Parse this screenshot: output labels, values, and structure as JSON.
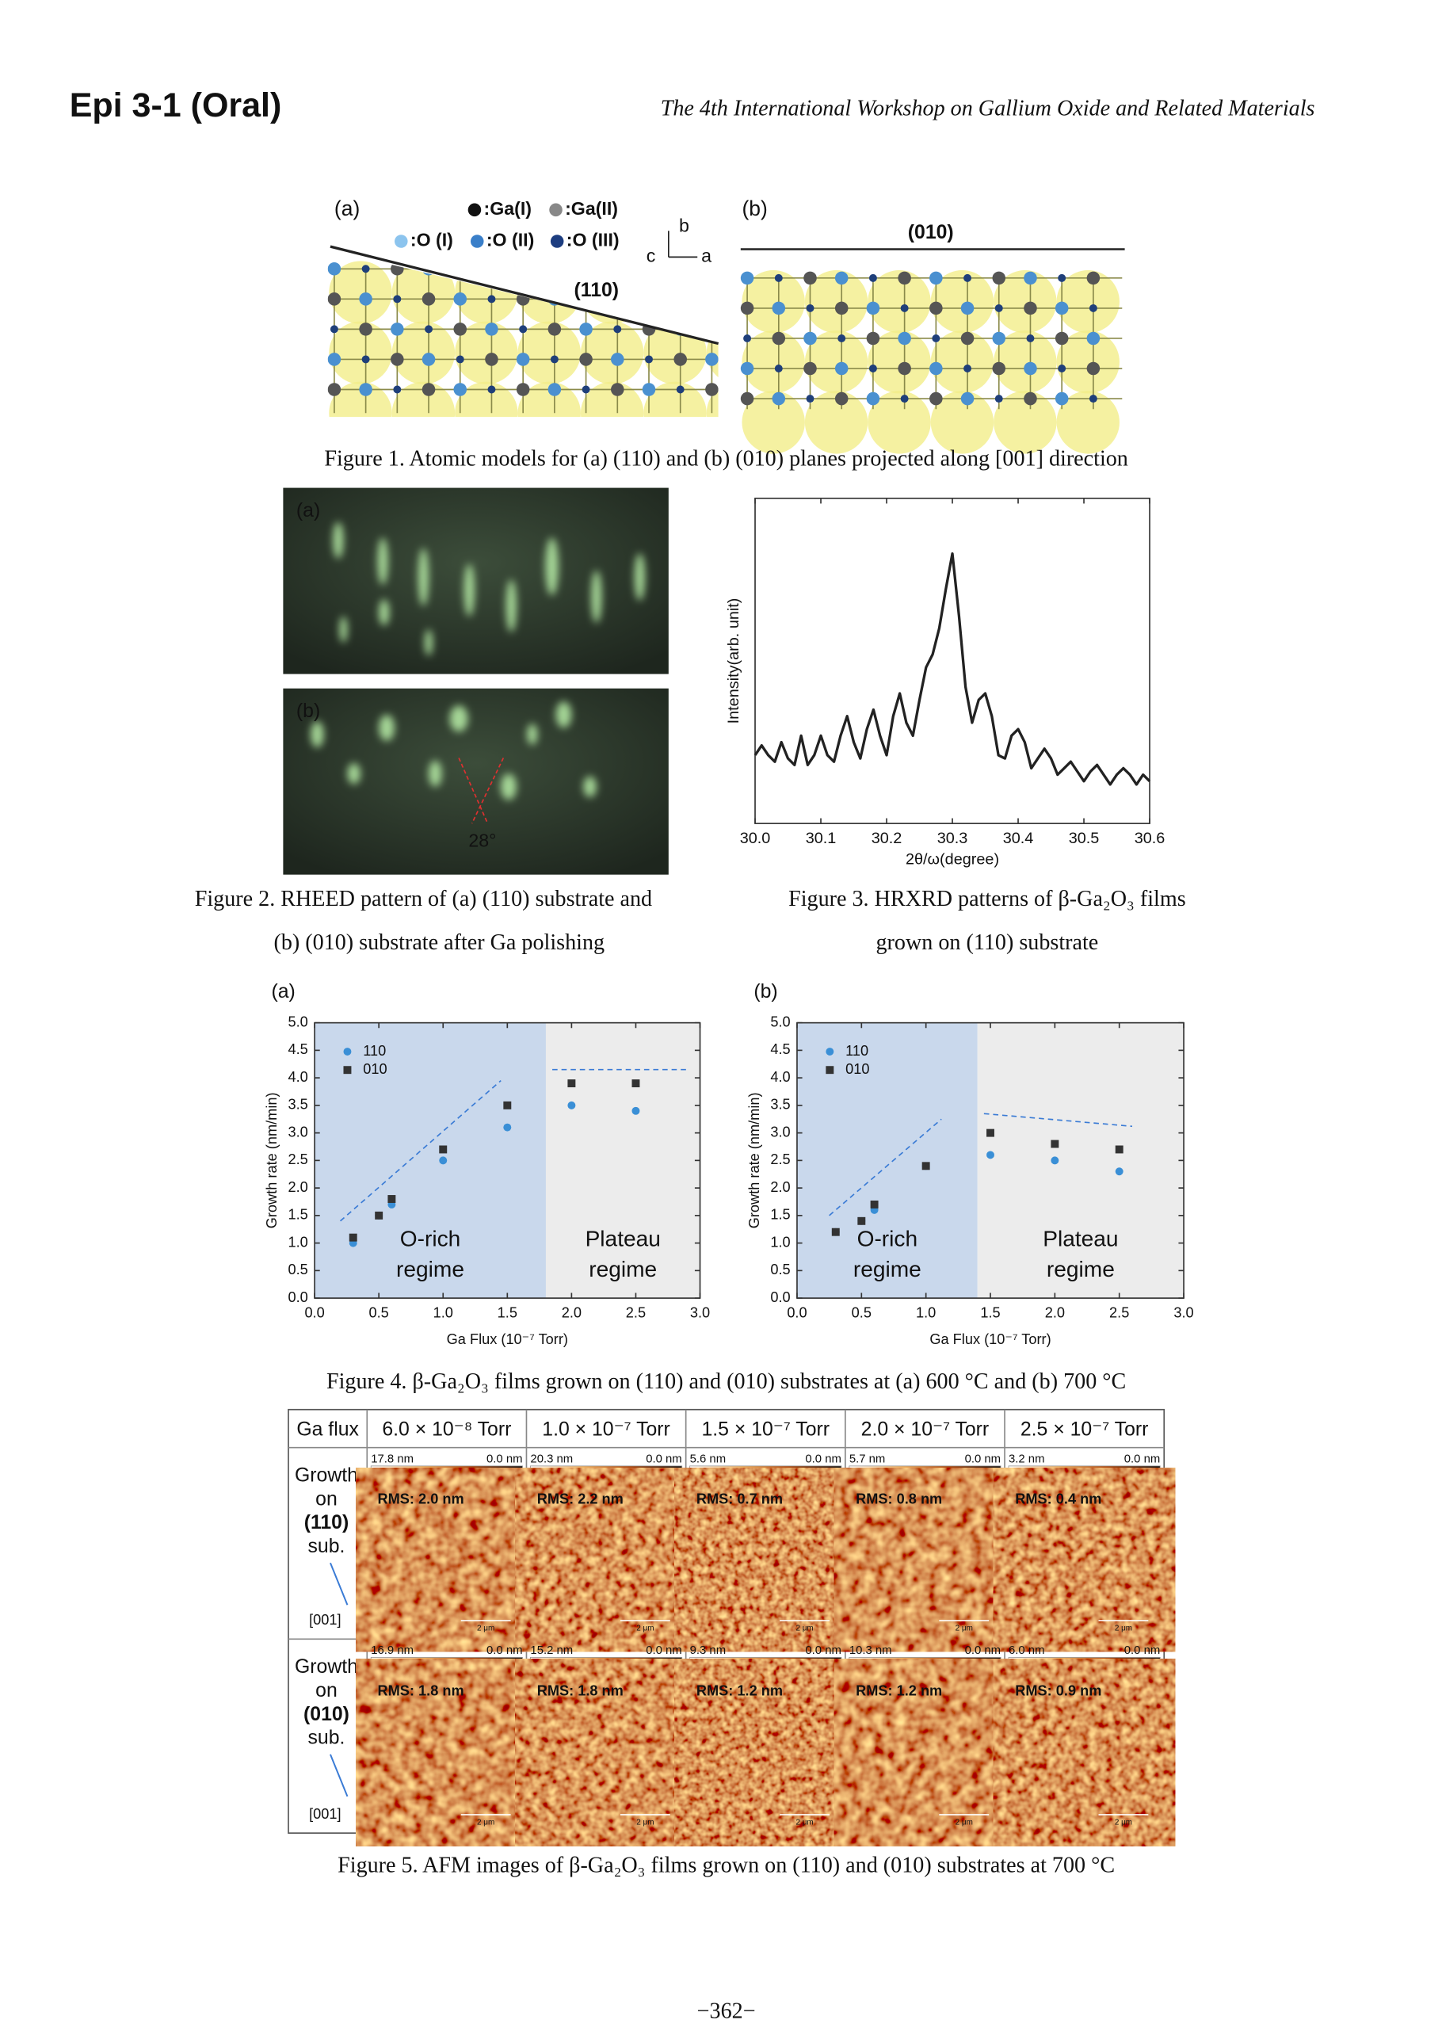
{
  "header": {
    "title": "Epi 3-1 (Oral)",
    "conference": "The 4th International Workshop on Gallium Oxide and Related Materials"
  },
  "figure1": {
    "panels": [
      "(a)",
      "(b)"
    ],
    "legend": [
      ":Ga(I)",
      ":Ga(II)",
      ":O (I)",
      ":O (II)",
      ":O (III)"
    ],
    "axes": [
      "b",
      "c",
      "a"
    ],
    "planes": [
      "(110)",
      "(010)"
    ],
    "caption": "Figure 1. Atomic models for (a) (110) and (b) (010) planes projected along [001] direction"
  },
  "figure2": {
    "panels": [
      "(a)",
      "(b)"
    ],
    "angle": "28°",
    "caption": [
      "Figure 2. RHEED pattern of (a) (110) substrate and",
      "(b) (010) substrate after Ga polishing"
    ]
  },
  "figure3": {
    "caption": [
      "Figure 3. HRXRD patterns of β-Ga₂O₃ films",
      "grown on (110) substrate"
    ]
  },
  "chart_data": [
    {
      "type": "line",
      "xlabel": "2θ/ω(degree)",
      "ylabel": "Intensity(arb. unit)",
      "color": "#222222",
      "x": [
        30.0,
        30.01,
        30.02,
        30.03,
        30.04,
        30.05,
        30.06,
        30.07,
        30.08,
        30.09,
        30.1,
        30.11,
        30.12,
        30.13,
        30.14,
        30.15,
        30.16,
        30.17,
        30.18,
        30.19,
        30.2,
        30.21,
        30.22,
        30.23,
        30.24,
        30.25,
        30.26,
        30.27,
        30.28,
        30.29,
        30.3,
        30.31,
        30.32,
        30.33,
        30.34,
        30.35,
        30.36,
        30.37,
        30.38,
        30.39,
        30.4,
        30.41,
        30.42,
        30.43,
        30.44,
        30.45,
        30.46,
        30.47,
        30.48,
        30.49,
        30.5,
        30.51,
        30.52,
        30.53,
        30.54,
        30.55,
        30.56,
        30.57,
        30.58,
        30.59,
        30.6
      ],
      "values": [
        21,
        24,
        21,
        19,
        25,
        20,
        18,
        27,
        18,
        21,
        27,
        21,
        19,
        27,
        33,
        25,
        20,
        29,
        35,
        27,
        21,
        33,
        40,
        31,
        27,
        38,
        48,
        52,
        60,
        72,
        83,
        64,
        42,
        31,
        38,
        40,
        33,
        21,
        20,
        27,
        29,
        25,
        17,
        20,
        23,
        20,
        15,
        17,
        19,
        16,
        13,
        16,
        18,
        15,
        12,
        15,
        17,
        15,
        12,
        15,
        13
      ],
      "xlim": [
        30.0,
        30.6
      ],
      "xticks": [
        {
          "value": 30,
          "label": "30.0"
        },
        30.1,
        30.2,
        30.3,
        30.4,
        30.5,
        30.6
      ],
      "ylim": [
        0,
        100
      ]
    },
    {
      "type": "scatter",
      "panel": "(a)",
      "xlabel": "Ga Flux (10⁻⁷ Torr)",
      "ylabel": "Growth rate (nm/min)",
      "legend": "upper left",
      "xlim": [
        0,
        3
      ],
      "xticks": [
        {
          "value": 0,
          "label": "0.0"
        },
        0.5,
        {
          "value": 1,
          "label": "1.0"
        },
        1.5,
        {
          "value": 2,
          "label": "2.0"
        },
        2.5,
        {
          "value": 3,
          "label": "3.0"
        }
      ],
      "ylim": [
        0,
        5
      ],
      "yticks": [
        {
          "value": 0,
          "label": "0.0"
        },
        0.5,
        {
          "value": 1,
          "label": "1.0"
        },
        1.5,
        {
          "value": 2,
          "label": "2.0"
        },
        2.5,
        {
          "value": 3,
          "label": "3.0"
        },
        3.5,
        {
          "value": 4,
          "label": "4.0"
        },
        4.5,
        {
          "value": 5,
          "label": "5.0"
        }
      ],
      "regions": [
        {
          "label": [
            "O-rich",
            "regime"
          ],
          "xrange": [
            0,
            1.8
          ],
          "color": "#c9d8ec"
        },
        {
          "label": [
            "Plateau",
            "regime"
          ],
          "xrange": [
            1.8,
            3
          ],
          "color": "#ececec"
        }
      ],
      "guides": [
        {
          "x": [
            0.2,
            1.45
          ],
          "y": [
            1.4,
            3.95
          ],
          "color": "#3a7bd5"
        },
        {
          "x": [
            1.85,
            2.9
          ],
          "y": [
            4.15,
            4.15
          ],
          "color": "#3a7bd5"
        }
      ],
      "series": [
        {
          "name": "110",
          "color": "#3a8fd6",
          "marker": "circle",
          "x": [
            0.3,
            0.5,
            0.6,
            1.0,
            1.5,
            2.0,
            2.5
          ],
          "values": [
            1.0,
            1.5,
            1.7,
            2.5,
            3.1,
            3.5,
            3.4
          ]
        },
        {
          "name": "010",
          "color": "#333333",
          "marker": "square",
          "x": [
            0.3,
            0.5,
            0.6,
            1.0,
            1.5,
            2.0,
            2.5
          ],
          "values": [
            1.1,
            1.5,
            1.8,
            2.7,
            3.5,
            3.9,
            3.9
          ]
        }
      ]
    },
    {
      "type": "scatter",
      "panel": "(b)",
      "xlabel": "Ga Flux (10⁻⁷ Torr)",
      "ylabel": "Growth rate (nm/min)",
      "legend": "upper left",
      "xlim": [
        0,
        3
      ],
      "xticks": [
        {
          "value": 0,
          "label": "0.0"
        },
        0.5,
        {
          "value": 1,
          "label": "1.0"
        },
        1.5,
        {
          "value": 2,
          "label": "2.0"
        },
        2.5,
        {
          "value": 3,
          "label": "3.0"
        }
      ],
      "ylim": [
        0,
        5
      ],
      "yticks": [
        {
          "value": 0,
          "label": "0.0"
        },
        0.5,
        {
          "value": 1,
          "label": "1.0"
        },
        1.5,
        {
          "value": 2,
          "label": "2.0"
        },
        2.5,
        {
          "value": 3,
          "label": "3.0"
        },
        3.5,
        {
          "value": 4,
          "label": "4.0"
        },
        4.5,
        {
          "value": 5,
          "label": "5.0"
        }
      ],
      "regions": [
        {
          "label": [
            "O-rich",
            "regime"
          ],
          "xrange": [
            0,
            1.4
          ],
          "color": "#c9d8ec"
        },
        {
          "label": [
            "Plateau",
            "regime"
          ],
          "xrange": [
            1.4,
            3
          ],
          "color": "#ececec"
        }
      ],
      "guides": [
        {
          "x": [
            0.25,
            1.12
          ],
          "y": [
            1.5,
            3.25
          ],
          "color": "#3a7bd5"
        },
        {
          "x": [
            1.45,
            2.6
          ],
          "y": [
            3.35,
            3.12
          ],
          "color": "#3a7bd5"
        }
      ],
      "series": [
        {
          "name": "110",
          "color": "#3a8fd6",
          "marker": "circle",
          "x": [
            0.3,
            0.5,
            0.6,
            1.0,
            1.5,
            2.0,
            2.5
          ],
          "values": [
            1.2,
            1.4,
            1.6,
            2.4,
            2.6,
            2.5,
            2.3
          ]
        },
        {
          "name": "010",
          "color": "#333333",
          "marker": "square",
          "x": [
            0.3,
            0.5,
            0.6,
            1.0,
            1.5,
            2.0,
            2.5
          ],
          "values": [
            1.2,
            1.4,
            1.7,
            2.4,
            3.0,
            2.8,
            2.7
          ]
        }
      ]
    }
  ],
  "figure4": {
    "caption": "Figure 4. β-Ga₂O₃ films grown on (110) and (010) substrates at (a) 600 °C and (b) 700 °C"
  },
  "figure5": {
    "header": [
      "Ga flux",
      "6.0 × 10⁻⁸ Torr",
      "1.0 × 10⁻⁷ Torr",
      "1.5 × 10⁻⁷ Torr",
      "2.0 × 10⁻⁷ Torr",
      "2.5 × 10⁻⁷ Torr"
    ],
    "rows": [
      {
        "label": [
          "Growth",
          "on",
          "(110)",
          "sub."
        ],
        "direction": "[001]",
        "images": [
          {
            "max": "17.8 nm",
            "min": "0.0 nm",
            "rms": "RMS: 2.0 nm"
          },
          {
            "max": "20.3 nm",
            "min": "0.0 nm",
            "rms": "RMS: 2.2 nm"
          },
          {
            "max": "5.6 nm",
            "min": "0.0 nm",
            "rms": "RMS: 0.7 nm"
          },
          {
            "max": "5.7 nm",
            "min": "0.0 nm",
            "rms": "RMS: 0.8 nm"
          },
          {
            "max": "3.2 nm",
            "min": "0.0 nm",
            "rms": "RMS: 0.4 nm"
          }
        ]
      },
      {
        "label": [
          "Growth",
          "on",
          "(010)",
          "sub."
        ],
        "direction": "[001]",
        "images": [
          {
            "max": "16.9 nm",
            "min": "0.0 nm",
            "rms": "RMS: 1.8 nm"
          },
          {
            "max": "15.2 nm",
            "min": "0.0 nm",
            "rms": "RMS: 1.8 nm"
          },
          {
            "max": "9.3 nm",
            "min": "0.0 nm",
            "rms": "RMS: 1.2 nm"
          },
          {
            "max": "10.3 nm",
            "min": "0.0 nm",
            "rms": "RMS: 1.2 nm"
          },
          {
            "max": "6.0 nm",
            "min": "0.0 nm",
            "rms": "RMS: 0.9 nm"
          }
        ]
      }
    ],
    "scale_bar": "2 μm",
    "caption": "Figure 5. AFM images of β-Ga₂O₃ films grown on (110) and (010) substrates at 700 °C"
  },
  "footer": {
    "page": "−362−"
  }
}
